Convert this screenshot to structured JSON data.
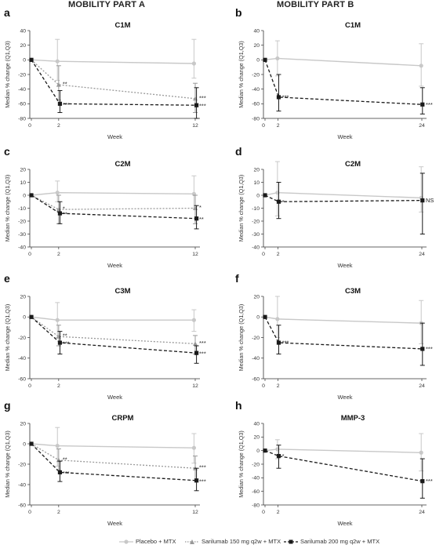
{
  "column_titles": [
    "MOBILITY PART A",
    "MOBILITY PART B"
  ],
  "legend": [
    {
      "label": "Placebo + MTX",
      "color": "#c8c8c8",
      "marker": "circle",
      "dash": "solid"
    },
    {
      "label": "Sarilumab 150 mg q2w + MTX",
      "color": "#999999",
      "marker": "triangle",
      "dash": "dotted"
    },
    {
      "label": "Sarilumab 200 mg q2w + MTX",
      "color": "#1a1a1a",
      "marker": "square",
      "dash": "dashed"
    }
  ],
  "chart_data": [
    {
      "panel": "a",
      "title": "C1M",
      "type": "line",
      "xlabel": "Week",
      "ylabel": "Median % change (Q1,Q3)",
      "x": [
        0,
        2,
        12
      ],
      "xticks": [
        0,
        2,
        12
      ],
      "ylim": [
        -80,
        40
      ],
      "yticks": [
        40,
        20,
        0,
        -20,
        -40,
        -60,
        -80
      ],
      "series": [
        {
          "name": "Placebo + MTX",
          "values": [
            0,
            -2,
            -5
          ],
          "q1": [
            0,
            -28,
            -25
          ],
          "q3": [
            0,
            28,
            28
          ]
        },
        {
          "name": "Sarilumab 150 mg q2w + MTX",
          "values": [
            0,
            -34,
            -53
          ],
          "q1": [
            0,
            -55,
            -72
          ],
          "q3": [
            0,
            -8,
            -32
          ]
        },
        {
          "name": "Sarilumab 200 mg q2w + MTX",
          "values": [
            0,
            -60,
            -62
          ],
          "q1": [
            0,
            -72,
            -80
          ],
          "q3": [
            0,
            -42,
            -38
          ]
        }
      ],
      "annotations": [
        {
          "x": 2,
          "text": "**"
        },
        {
          "x": 2,
          "text": "***"
        },
        {
          "x": 12,
          "text": "***"
        },
        {
          "x": 12,
          "text": "***"
        }
      ]
    },
    {
      "panel": "b",
      "title": "C1M",
      "type": "line",
      "xlabel": "Week",
      "ylabel": "Median % change (Q1,Q3)",
      "x": [
        0,
        2,
        24
      ],
      "xticks": [
        0,
        2,
        24
      ],
      "ylim": [
        -80,
        40
      ],
      "yticks": [
        40,
        20,
        0,
        -20,
        -40,
        -60,
        -80
      ],
      "series": [
        {
          "name": "Placebo + MTX",
          "values": [
            0,
            2,
            -8
          ],
          "q1": [
            0,
            -22,
            -36
          ],
          "q3": [
            0,
            26,
            22
          ]
        },
        {
          "name": "Sarilumab 200 mg q2w + MTX",
          "values": [
            0,
            -51,
            -61
          ],
          "q1": [
            0,
            -70,
            -74
          ],
          "q3": [
            0,
            -20,
            -38
          ]
        }
      ],
      "annotations": [
        {
          "x": 2,
          "text": "***"
        },
        {
          "x": 24,
          "text": "***"
        }
      ]
    },
    {
      "panel": "c",
      "title": "C2M",
      "type": "line",
      "xlabel": "Week",
      "ylabel": "Median % change (Q1,Q3)",
      "x": [
        0,
        2,
        12
      ],
      "xticks": [
        0,
        2,
        12
      ],
      "ylim": [
        -40,
        20
      ],
      "yticks": [
        20,
        10,
        0,
        -10,
        -20,
        -30,
        -40
      ],
      "series": [
        {
          "name": "Placebo + MTX",
          "values": [
            0,
            2,
            1
          ],
          "q1": [
            0,
            -5,
            -10
          ],
          "q3": [
            0,
            11,
            15
          ]
        },
        {
          "name": "Sarilumab 150 mg q2w + MTX",
          "values": [
            0,
            -11,
            -10
          ],
          "q1": [
            0,
            -22,
            -22
          ],
          "q3": [
            0,
            0,
            0
          ]
        },
        {
          "name": "Sarilumab 200 mg q2w + MTX",
          "values": [
            0,
            -14,
            -18
          ],
          "q1": [
            0,
            -22,
            -26
          ],
          "q3": [
            0,
            -5,
            -8
          ]
        }
      ],
      "annotations": [
        {
          "x": 2,
          "text": "*"
        },
        {
          "x": 2,
          "text": "**"
        },
        {
          "x": 12,
          "text": "*"
        },
        {
          "x": 12,
          "text": "**"
        }
      ]
    },
    {
      "panel": "d",
      "title": "C2M",
      "type": "line",
      "xlabel": "Week",
      "ylabel": "Median % change (Q1,Q3)",
      "x": [
        0,
        2,
        24
      ],
      "xticks": [
        0,
        2,
        24
      ],
      "ylim": [
        -40,
        20
      ],
      "yticks": [
        20,
        10,
        0,
        -10,
        -20,
        -30,
        -40
      ],
      "series": [
        {
          "name": "Placebo + MTX",
          "values": [
            0,
            2,
            -2
          ],
          "q1": [
            0,
            -16,
            -13
          ],
          "q3": [
            0,
            26,
            22
          ]
        },
        {
          "name": "Sarilumab 200 mg q2w + MTX",
          "values": [
            0,
            -5,
            -4
          ],
          "q1": [
            0,
            -18,
            -30
          ],
          "q3": [
            0,
            10,
            17
          ]
        }
      ],
      "annotations": [
        {
          "x": 2,
          "text": "*"
        },
        {
          "x": 24,
          "text": "NS"
        }
      ]
    },
    {
      "panel": "e",
      "title": "C3M",
      "type": "line",
      "xlabel": "Week",
      "ylabel": "Median % change (Q1,Q3)",
      "x": [
        0,
        2,
        12
      ],
      "xticks": [
        0,
        2,
        12
      ],
      "ylim": [
        -60,
        20
      ],
      "yticks": [
        20,
        0,
        -20,
        -40,
        -60
      ],
      "series": [
        {
          "name": "Placebo + MTX",
          "values": [
            0,
            -3,
            -3
          ],
          "q1": [
            0,
            -20,
            -14
          ],
          "q3": [
            0,
            14,
            7
          ]
        },
        {
          "name": "Sarilumab 150 mg q2w + MTX",
          "values": [
            0,
            -19,
            -26
          ],
          "q1": [
            0,
            -28,
            -36
          ],
          "q3": [
            0,
            -8,
            -18
          ]
        },
        {
          "name": "Sarilumab 200 mg q2w + MTX",
          "values": [
            0,
            -25,
            -35
          ],
          "q1": [
            0,
            -36,
            -45
          ],
          "q3": [
            0,
            -14,
            -28
          ]
        }
      ],
      "annotations": [
        {
          "x": 2,
          "text": "**"
        },
        {
          "x": 2,
          "text": "***"
        },
        {
          "x": 12,
          "text": "***"
        },
        {
          "x": 12,
          "text": "***"
        }
      ]
    },
    {
      "panel": "f",
      "title": "C3M",
      "type": "line",
      "xlabel": "Week",
      "ylabel": "Median % change (Q1,Q3)",
      "x": [
        0,
        2,
        24
      ],
      "xticks": [
        0,
        2,
        24
      ],
      "ylim": [
        -60,
        20
      ],
      "yticks": [
        20,
        0,
        -20,
        -40,
        -60
      ],
      "series": [
        {
          "name": "Placebo + MTX",
          "values": [
            0,
            -2,
            -6
          ],
          "q1": [
            0,
            -20,
            -26
          ],
          "q3": [
            0,
            20,
            16
          ]
        },
        {
          "name": "Sarilumab 200 mg q2w + MTX",
          "values": [
            0,
            -25,
            -31
          ],
          "q1": [
            0,
            -36,
            -47
          ],
          "q3": [
            0,
            -8,
            -6
          ]
        }
      ],
      "annotations": [
        {
          "x": 2,
          "text": "***"
        },
        {
          "x": 24,
          "text": "***"
        }
      ]
    },
    {
      "panel": "g",
      "title": "CRPM",
      "type": "line",
      "xlabel": "Week",
      "ylabel": "Median % change (Q1,Q3)",
      "x": [
        0,
        2,
        12
      ],
      "xticks": [
        0,
        2,
        12
      ],
      "ylim": [
        -60,
        20
      ],
      "yticks": [
        20,
        0,
        -20,
        -40,
        -60
      ],
      "series": [
        {
          "name": "Placebo + MTX",
          "values": [
            0,
            -2,
            -4
          ],
          "q1": [
            0,
            -22,
            -19
          ],
          "q3": [
            0,
            16,
            10
          ]
        },
        {
          "name": "Sarilumab 150 mg q2w + MTX",
          "values": [
            0,
            -16,
            -24
          ],
          "q1": [
            0,
            -26,
            -36
          ],
          "q3": [
            0,
            -5,
            -12
          ]
        },
        {
          "name": "Sarilumab 200 mg q2w + MTX",
          "values": [
            0,
            -28,
            -36
          ],
          "q1": [
            0,
            -37,
            -46
          ],
          "q3": [
            0,
            -17,
            -24
          ]
        }
      ],
      "annotations": [
        {
          "x": 2,
          "text": "**"
        },
        {
          "x": 2,
          "text": "***"
        },
        {
          "x": 12,
          "text": "***"
        },
        {
          "x": 12,
          "text": "***"
        }
      ]
    },
    {
      "panel": "h",
      "title": "MMP-3",
      "type": "line",
      "xlabel": "Week",
      "ylabel": "Median % change (Q1,Q3)",
      "x": [
        0,
        2,
        24
      ],
      "xticks": [
        0,
        2,
        24
      ],
      "ylim": [
        -80,
        40
      ],
      "yticks": [
        40,
        20,
        0,
        -20,
        -40,
        -60,
        -80
      ],
      "series": [
        {
          "name": "Placebo + MTX",
          "values": [
            0,
            2,
            -3
          ],
          "q1": [
            0,
            -12,
            -30
          ],
          "q3": [
            0,
            16,
            25
          ]
        },
        {
          "name": "Sarilumab 200 mg q2w + MTX",
          "values": [
            0,
            -8,
            -45
          ],
          "q1": [
            0,
            -26,
            -70
          ],
          "q3": [
            0,
            8,
            -12
          ]
        }
      ],
      "annotations": [
        {
          "x": 2,
          "text": "*"
        },
        {
          "x": 24,
          "text": "***"
        }
      ]
    }
  ]
}
